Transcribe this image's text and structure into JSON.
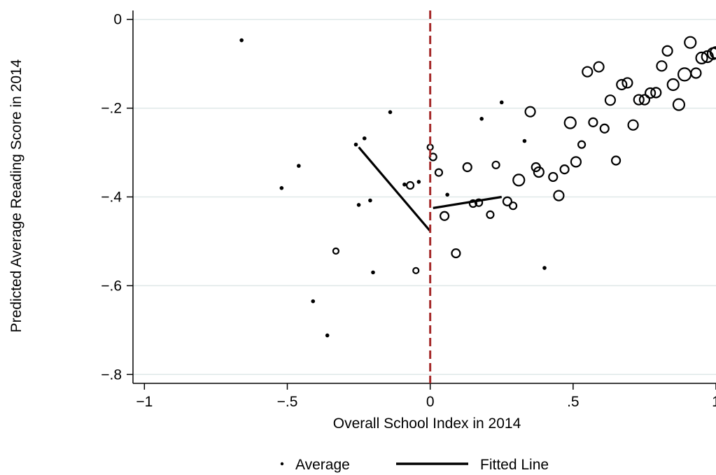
{
  "chart_data": {
    "type": "scatter",
    "xlabel": "Overall School Index in 2014",
    "ylabel": "Predicted Average Reading Score in 2014",
    "xlim": [
      -1.04,
      1.0
    ],
    "ylim": [
      -0.82,
      0.02
    ],
    "x_ticks": [
      {
        "value": -1,
        "label": "−1"
      },
      {
        "value": -0.5,
        "label": "−.5"
      },
      {
        "value": 0,
        "label": "0"
      },
      {
        "value": 0.5,
        "label": ".5"
      },
      {
        "value": 1,
        "label": "1"
      }
    ],
    "y_ticks": [
      {
        "value": 0,
        "label": "0"
      },
      {
        "value": -0.2,
        "label": "−.2"
      },
      {
        "value": -0.4,
        "label": "−.4"
      },
      {
        "value": -0.6,
        "label": "−.6"
      },
      {
        "value": -0.8,
        "label": "−.8"
      }
    ],
    "grid": true,
    "cutoff_x": 0,
    "cutoff_color": "#a52a2a",
    "legend": [
      {
        "marker": "dot",
        "label": "Average"
      },
      {
        "marker": "line",
        "label": "Fitted Line"
      }
    ],
    "legend_position": "bottom",
    "series": [
      {
        "name": "Average",
        "marker": "dot",
        "points": [
          {
            "x": -0.66,
            "y": -0.047
          },
          {
            "x": -0.52,
            "y": -0.38
          },
          {
            "x": -0.46,
            "y": -0.33
          },
          {
            "x": -0.41,
            "y": -0.635
          },
          {
            "x": -0.36,
            "y": -0.712
          },
          {
            "x": -0.26,
            "y": -0.282
          },
          {
            "x": -0.25,
            "y": -0.418
          },
          {
            "x": -0.23,
            "y": -0.268
          },
          {
            "x": -0.21,
            "y": -0.408
          },
          {
            "x": -0.2,
            "y": -0.57
          },
          {
            "x": -0.14,
            "y": -0.209
          },
          {
            "x": -0.09,
            "y": -0.372
          },
          {
            "x": -0.04,
            "y": -0.366
          },
          {
            "x": 0.06,
            "y": -0.395
          },
          {
            "x": 0.18,
            "y": -0.224
          },
          {
            "x": 0.25,
            "y": -0.187
          },
          {
            "x": 0.33,
            "y": -0.274
          },
          {
            "x": 0.4,
            "y": -0.56
          }
        ]
      },
      {
        "name": "Average",
        "marker": "ring",
        "points": [
          {
            "x": -0.33,
            "y": -0.522,
            "size": 4
          },
          {
            "x": -0.07,
            "y": -0.374,
            "size": 5
          },
          {
            "x": -0.05,
            "y": -0.566,
            "size": 4
          },
          {
            "x": 0.0,
            "y": -0.288,
            "size": 4
          },
          {
            "x": 0.01,
            "y": -0.31,
            "size": 5
          },
          {
            "x": 0.03,
            "y": -0.345,
            "size": 5
          },
          {
            "x": 0.05,
            "y": -0.443,
            "size": 6
          },
          {
            "x": 0.09,
            "y": -0.527,
            "size": 6
          },
          {
            "x": 0.13,
            "y": -0.333,
            "size": 6
          },
          {
            "x": 0.15,
            "y": -0.415,
            "size": 5
          },
          {
            "x": 0.17,
            "y": -0.413,
            "size": 5
          },
          {
            "x": 0.21,
            "y": -0.44,
            "size": 5
          },
          {
            "x": 0.23,
            "y": -0.328,
            "size": 5
          },
          {
            "x": 0.27,
            "y": -0.41,
            "size": 6
          },
          {
            "x": 0.29,
            "y": -0.42,
            "size": 5
          },
          {
            "x": 0.31,
            "y": -0.362,
            "size": 8
          },
          {
            "x": 0.35,
            "y": -0.208,
            "size": 7
          },
          {
            "x": 0.37,
            "y": -0.333,
            "size": 6
          },
          {
            "x": 0.38,
            "y": -0.344,
            "size": 7
          },
          {
            "x": 0.43,
            "y": -0.355,
            "size": 6
          },
          {
            "x": 0.45,
            "y": -0.397,
            "size": 7
          },
          {
            "x": 0.47,
            "y": -0.338,
            "size": 6
          },
          {
            "x": 0.49,
            "y": -0.233,
            "size": 8
          },
          {
            "x": 0.51,
            "y": -0.321,
            "size": 7
          },
          {
            "x": 0.53,
            "y": -0.282,
            "size": 5
          },
          {
            "x": 0.55,
            "y": -0.118,
            "size": 7
          },
          {
            "x": 0.57,
            "y": -0.232,
            "size": 6
          },
          {
            "x": 0.59,
            "y": -0.107,
            "size": 7
          },
          {
            "x": 0.61,
            "y": -0.246,
            "size": 6
          },
          {
            "x": 0.63,
            "y": -0.182,
            "size": 7
          },
          {
            "x": 0.65,
            "y": -0.318,
            "size": 6
          },
          {
            "x": 0.67,
            "y": -0.147,
            "size": 7
          },
          {
            "x": 0.69,
            "y": -0.143,
            "size": 7
          },
          {
            "x": 0.71,
            "y": -0.238,
            "size": 7
          },
          {
            "x": 0.73,
            "y": -0.181,
            "size": 7
          },
          {
            "x": 0.75,
            "y": -0.181,
            "size": 7
          },
          {
            "x": 0.77,
            "y": -0.166,
            "size": 7
          },
          {
            "x": 0.79,
            "y": -0.165,
            "size": 7
          },
          {
            "x": 0.81,
            "y": -0.105,
            "size": 7
          },
          {
            "x": 0.83,
            "y": -0.071,
            "size": 7
          },
          {
            "x": 0.85,
            "y": -0.147,
            "size": 8
          },
          {
            "x": 0.87,
            "y": -0.192,
            "size": 8
          },
          {
            "x": 0.89,
            "y": -0.124,
            "size": 9
          },
          {
            "x": 0.91,
            "y": -0.052,
            "size": 8
          },
          {
            "x": 0.93,
            "y": -0.121,
            "size": 7
          },
          {
            "x": 0.95,
            "y": -0.087,
            "size": 8
          },
          {
            "x": 0.97,
            "y": -0.084,
            "size": 8
          },
          {
            "x": 0.99,
            "y": -0.077,
            "size": 8
          },
          {
            "x": 1.0,
            "y": -0.075,
            "size": 8
          }
        ]
      },
      {
        "name": "Fitted Line",
        "marker": "line",
        "segments": [
          [
            {
              "x": -0.25,
              "y": -0.288
            },
            {
              "x": 0.0,
              "y": -0.477
            }
          ],
          [
            {
              "x": 0.01,
              "y": -0.425
            },
            {
              "x": 0.25,
              "y": -0.4
            }
          ]
        ]
      }
    ]
  }
}
